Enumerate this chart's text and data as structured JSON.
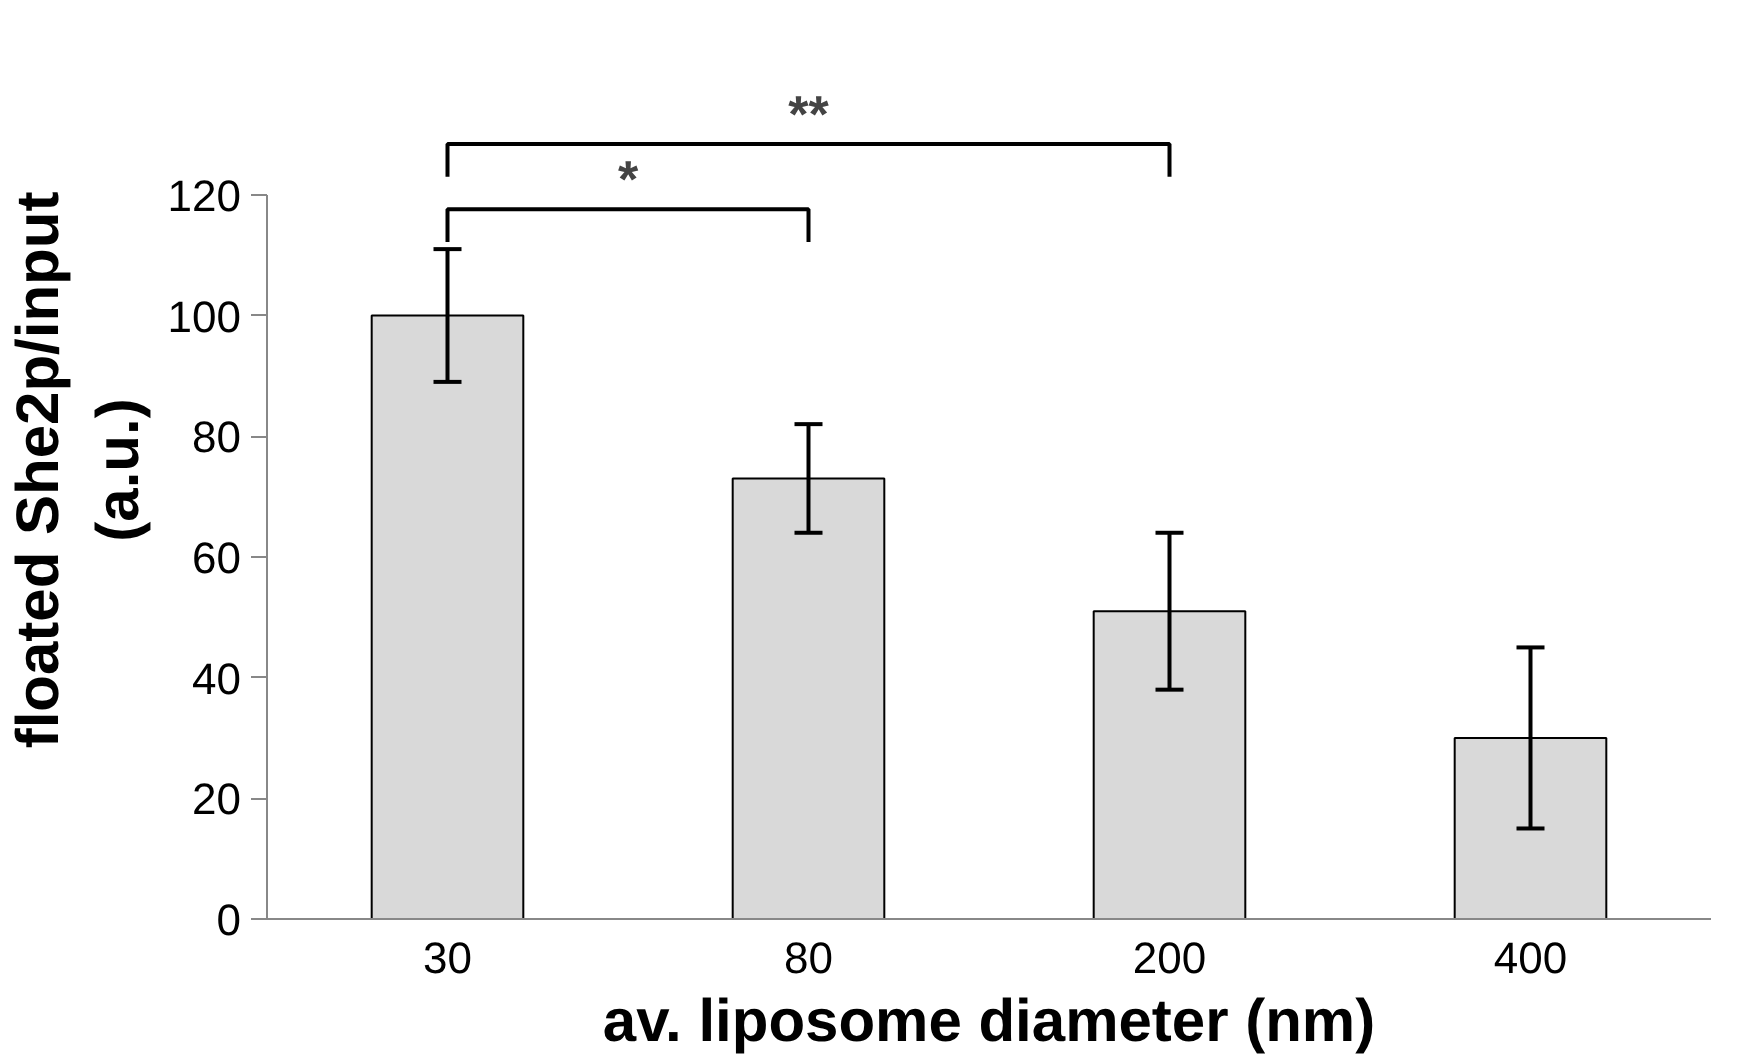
{
  "chart_data": {
    "type": "bar",
    "xlabel": "av. liposome diameter (nm)",
    "ylabel": "floated She2p/input\n(a.u.)",
    "categories": [
      "30",
      "80",
      "200",
      "400"
    ],
    "values": [
      100,
      73,
      51,
      30
    ],
    "errors": [
      11,
      9,
      13,
      15
    ],
    "color": "#d9d9d9",
    "ylim": [
      0,
      120
    ],
    "yticks": [
      0,
      20,
      40,
      60,
      80,
      100,
      120
    ],
    "grid": false,
    "annotations": [
      "*",
      "**"
    ]
  }
}
